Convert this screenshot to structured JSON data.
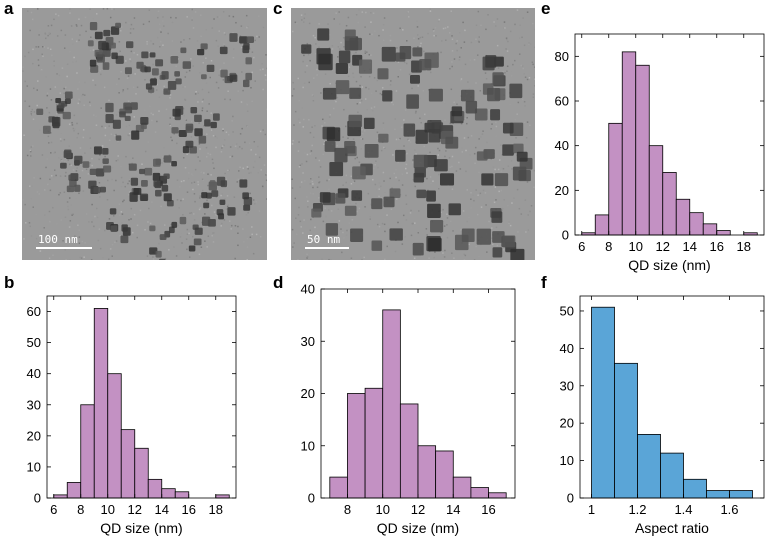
{
  "panels": {
    "a": {
      "letter": "a",
      "scale_label": "100 nm"
    },
    "c": {
      "letter": "c",
      "scale_label": "50 nm"
    },
    "b": {
      "letter": "b"
    },
    "d": {
      "letter": "d"
    },
    "e": {
      "letter": "e"
    },
    "f": {
      "letter": "f"
    }
  },
  "colors": {
    "qd_bar": "#c391c3",
    "aspect_bar": "#5aa5d7",
    "tem_bg": "#9a9a9a",
    "particle": "#3c3c3c"
  },
  "chart_data": [
    {
      "id": "b",
      "type": "bar",
      "xlabel": "QD size (nm)",
      "ylabel": "",
      "xlim": [
        5.5,
        19.5
      ],
      "ylim": [
        0,
        65
      ],
      "xticks": [
        6,
        8,
        10,
        12,
        14,
        16,
        18
      ],
      "yticks": [
        0,
        10,
        20,
        30,
        40,
        50,
        60
      ],
      "bin_width": 1,
      "bins": [
        6,
        7,
        8,
        9,
        10,
        11,
        12,
        13,
        14,
        15,
        16,
        17,
        18
      ],
      "values": [
        1,
        5,
        30,
        61,
        40,
        22,
        16,
        6,
        3,
        2,
        0,
        0,
        1
      ]
    },
    {
      "id": "d",
      "type": "bar",
      "xlabel": "QD size (nm)",
      "ylabel": "",
      "xlim": [
        6.5,
        17.5
      ],
      "ylim": [
        0,
        40
      ],
      "xticks": [
        8,
        10,
        12,
        14,
        16
      ],
      "yticks": [
        0,
        10,
        20,
        30,
        40
      ],
      "bin_width": 1,
      "bins": [
        7,
        8,
        9,
        10,
        11,
        12,
        13,
        14,
        15,
        16
      ],
      "values": [
        4,
        20,
        21,
        36,
        18,
        10,
        9,
        4,
        2,
        1
      ]
    },
    {
      "id": "e",
      "type": "bar",
      "xlabel": "QD size (nm)",
      "ylabel": "",
      "xlim": [
        5.5,
        19.5
      ],
      "ylim": [
        0,
        90
      ],
      "xticks": [
        6,
        8,
        10,
        12,
        14,
        16,
        18
      ],
      "yticks": [
        0,
        20,
        40,
        60,
        80
      ],
      "bin_width": 1,
      "bins": [
        6,
        7,
        8,
        9,
        10,
        11,
        12,
        13,
        14,
        15,
        16,
        17,
        18
      ],
      "values": [
        1,
        9,
        50,
        82,
        76,
        40,
        28,
        16,
        10,
        5,
        2,
        0,
        1
      ]
    },
    {
      "id": "f",
      "type": "bar",
      "xlabel": "Aspect ratio",
      "ylabel": "",
      "xlim": [
        0.95,
        1.75
      ],
      "ylim": [
        0,
        54
      ],
      "xticks": [
        1,
        1.2,
        1.4,
        1.6
      ],
      "xticklabels": [
        "1",
        "1.2",
        "1.4",
        "1.6"
      ],
      "yticks": [
        0,
        10,
        20,
        30,
        40,
        50
      ],
      "bin_width": 0.1,
      "bins": [
        1.0,
        1.1,
        1.2,
        1.3,
        1.4,
        1.5,
        1.6
      ],
      "values": [
        51,
        36,
        17,
        12,
        5,
        2,
        2
      ]
    }
  ]
}
